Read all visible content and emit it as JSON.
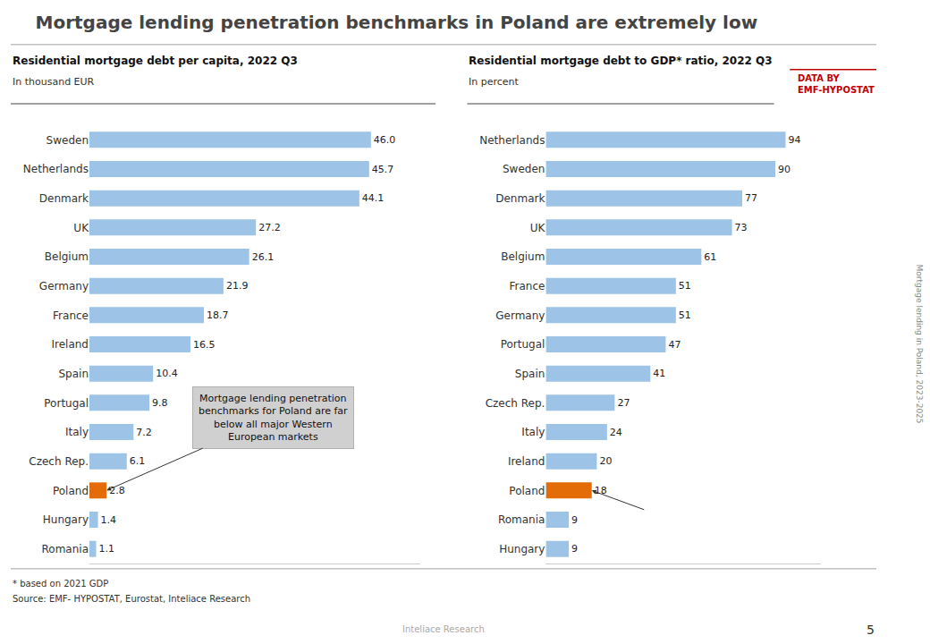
{
  "title": "Mortgage lending penetration benchmarks in Poland are extremely low",
  "chart_data": [
    {
      "type": "bar",
      "orientation": "horizontal",
      "title": "Residential mortgage debt per capita, 2022 Q3",
      "subtitle": "In thousand EUR",
      "categories": [
        "Sweden",
        "Netherlands",
        "Denmark",
        "UK",
        "Belgium",
        "Germany",
        "France",
        "Ireland",
        "Spain",
        "Portugal",
        "Italy",
        "Czech Rep.",
        "Poland",
        "Hungary",
        "Romania"
      ],
      "values": [
        46.0,
        45.7,
        44.1,
        27.2,
        26.1,
        21.9,
        18.7,
        16.5,
        10.4,
        9.8,
        7.2,
        6.1,
        2.8,
        1.4,
        1.1
      ],
      "value_labels": [
        "46.0",
        "45.7",
        "44.1",
        "27.2",
        "26.1",
        "21.9",
        "18.7",
        "16.5",
        "10.4",
        "9.8",
        "7.2",
        "6.1",
        "2.8",
        "1.4",
        "1.1"
      ],
      "colors": [
        "#9DC3E6",
        "#9DC3E6",
        "#9DC3E6",
        "#9DC3E6",
        "#9DC3E6",
        "#9DC3E6",
        "#9DC3E6",
        "#9DC3E6",
        "#9DC3E6",
        "#9DC3E6",
        "#9DC3E6",
        "#9DC3E6",
        "#E36C09",
        "#9DC3E6",
        "#9DC3E6"
      ],
      "xlim": [
        0,
        54
      ],
      "data_labels": true,
      "tick_labels": "y",
      "annotations": [
        {
          "text": "Mortgage lending penetration\nbenchmarks for Poland are far\nbelow all major Western\nEuropean markets",
          "category": "Poland",
          "color": "#D0D0D0"
        }
      ]
    },
    {
      "type": "bar",
      "orientation": "horizontal",
      "title": "Residential mortgage debt to GDP* ratio, 2022 Q3",
      "subtitle": "In percent",
      "categories": [
        "Netherlands",
        "Sweden",
        "Denmark",
        "UK",
        "Belgium",
        "France",
        "Germany",
        "Portugal",
        "Spain",
        "Czech Rep.",
        "Italy",
        "Ireland",
        "Poland",
        "Romania",
        "Hungary"
      ],
      "values": [
        94,
        90,
        77,
        73,
        61,
        51,
        51,
        47,
        41,
        27,
        24,
        20,
        18,
        9,
        9
      ],
      "colors": [
        "#9DC3E6",
        "#9DC3E6",
        "#9DC3E6",
        "#9DC3E6",
        "#9DC3E6",
        "#9DC3E6",
        "#9DC3E6",
        "#9DC3E6",
        "#9DC3E6",
        "#9DC3E6",
        "#9DC3E6",
        "#9DC3E6",
        "#E36C09",
        "#9DC3E6",
        "#9DC3E6"
      ],
      "xlim": [
        0,
        108
      ],
      "data_labels": true,
      "tick_labels": "y",
      "annotations": [
        {
          "category": "Poland"
        }
      ]
    }
  ],
  "credit": {
    "text": "DATA BY\nEMF-HYPOSTAT",
    "color": "#C00000"
  },
  "footnotes": [
    "* based on 2021 GDP",
    "Source: EMF- HYPOSTAT, Eurostat, Inteliace Research"
  ],
  "watermark": "Inteliace Research",
  "side_text": "Mortgage lending in Poland, 2023-2025",
  "page_number": "5"
}
